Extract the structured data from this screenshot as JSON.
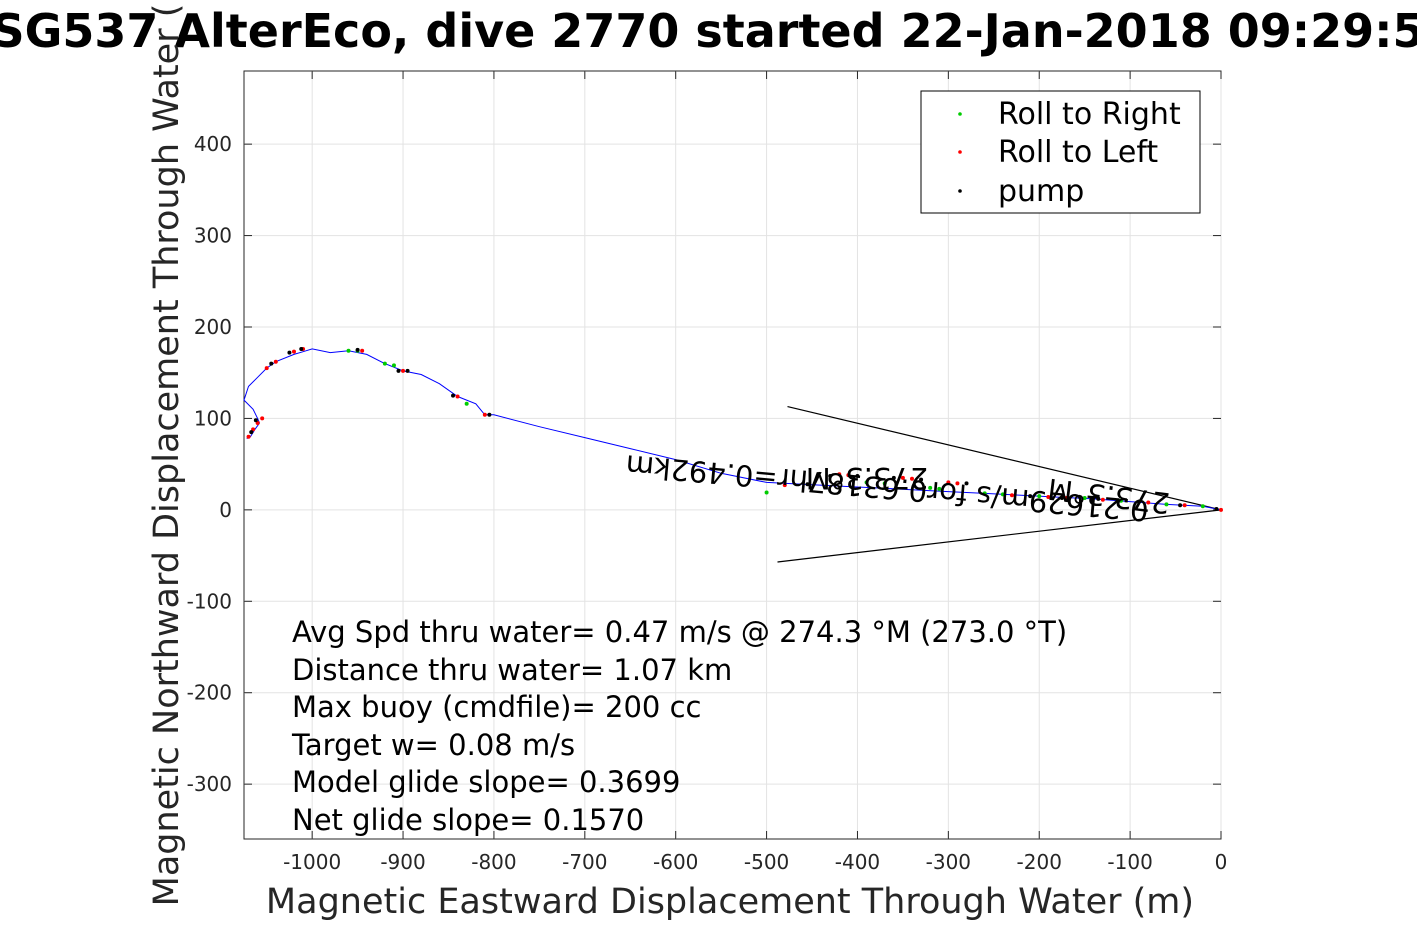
{
  "figure": {
    "title": "SG537 AlterEco, dive 2770 started 22-Jan-2018 09:29:5"
  },
  "chart_data": {
    "type": "scatter",
    "xlabel": "Magnetic Eastward Displacement Through Water (m)",
    "ylabel": "Magnetic Northward Displacement Through Water (",
    "xlim": [
      -1075,
      0
    ],
    "ylim": [
      -360,
      480
    ],
    "xticks": [
      -1000,
      -900,
      -800,
      -700,
      -600,
      -500,
      -400,
      -300,
      -200,
      -100,
      0
    ],
    "yticks": [
      -300,
      -200,
      -100,
      0,
      100,
      200,
      300,
      400
    ],
    "grid": true,
    "legend_position": "top-right",
    "track": {
      "color": "#0000ff",
      "x": [
        0,
        -20,
        -60,
        -100,
        -140,
        -180,
        -220,
        -260,
        -300,
        -340,
        -380,
        -420,
        -460,
        -500,
        -550,
        -600,
        -650,
        -700,
        -750,
        -800,
        -810,
        -820,
        -840,
        -860,
        -880,
        -900,
        -920,
        -940,
        -960,
        -980,
        -1000,
        -1010,
        -1020,
        -1040,
        -1050,
        -1060,
        -1070,
        -1075,
        -1065,
        -1060,
        -1058,
        -1063,
        -1068,
        -1072
      ],
      "y": [
        0,
        4,
        6,
        9,
        12,
        14,
        16,
        18,
        20,
        22,
        24,
        26,
        28,
        30,
        40,
        55,
        67,
        79,
        91,
        104,
        104,
        116,
        124,
        138,
        148,
        152,
        160,
        170,
        174,
        172,
        176,
        173,
        170,
        162,
        155,
        145,
        135,
        120,
        110,
        100,
        95,
        88,
        80,
        78
      ]
    },
    "series": [
      {
        "name": "Roll to Right",
        "color": "#00cc00",
        "x": [
          -20,
          -60,
          -110,
          -150,
          -200,
          -240,
          -260,
          -310,
          -320,
          -370,
          -390,
          -500,
          -830,
          -920,
          -910,
          -950,
          -960
        ],
        "y": [
          4,
          6,
          10,
          13,
          15,
          17,
          18,
          23,
          24,
          29,
          30,
          19,
          116,
          160,
          158,
          174,
          174
        ]
      },
      {
        "name": "Roll to Left",
        "color": "#ff0000",
        "x": [
          0,
          -40,
          -80,
          -130,
          -170,
          -190,
          -230,
          -290,
          -300,
          -340,
          -350,
          -410,
          -420,
          -480,
          -810,
          -840,
          -900,
          -945,
          -1010,
          -1020,
          -1040,
          -1050,
          -1055,
          -1060,
          -1065,
          -1070
        ],
        "y": [
          0,
          5,
          8,
          11,
          13,
          14,
          16,
          29,
          30,
          34,
          35,
          38,
          39,
          27,
          104,
          124,
          152,
          174,
          176,
          173,
          162,
          155,
          100,
          95,
          88,
          80
        ]
      },
      {
        "name": "pump",
        "color": "#000000",
        "x": [
          -5,
          -45,
          -90,
          -135,
          -175,
          -210,
          -280,
          -330,
          -360,
          -400,
          -430,
          -455,
          -805,
          -845,
          -895,
          -905,
          -950,
          -1012,
          -1025,
          -1045,
          -1062,
          -1067
        ],
        "y": [
          1,
          5,
          9,
          12,
          13,
          15,
          29,
          33,
          35,
          37,
          37,
          28,
          104,
          125,
          152,
          152,
          175,
          176,
          172,
          160,
          98,
          85
        ]
      }
    ],
    "reference_lines": [
      {
        "x": [
          0,
          -477
        ],
        "y": [
          0,
          113
        ],
        "color": "#000000"
      },
      {
        "x": [
          0,
          -488
        ],
        "y": [
          0,
          -57
        ],
        "color": "#000000"
      }
    ]
  },
  "legend": {
    "items": [
      "Roll to Right",
      "Roll to Left",
      "pump"
    ]
  },
  "stats": {
    "lines": [
      "Avg Spd thru water=  0.47 m/s @ 274.3 °M (273.0 °T)",
      "Distance thru water=  1.07 km",
      "Max buoy (cmdfile)= 200 cc",
      "Target w= 0.08 m/s",
      "Model glide slope= 0.3699",
      "Net glide slope= 0.1570"
    ]
  },
  "annotations": {
    "heading_1": "273.3°M",
    "speed": "0.21629m/s for0.63187hr=0.492km",
    "heading_2": "273.3°M"
  }
}
